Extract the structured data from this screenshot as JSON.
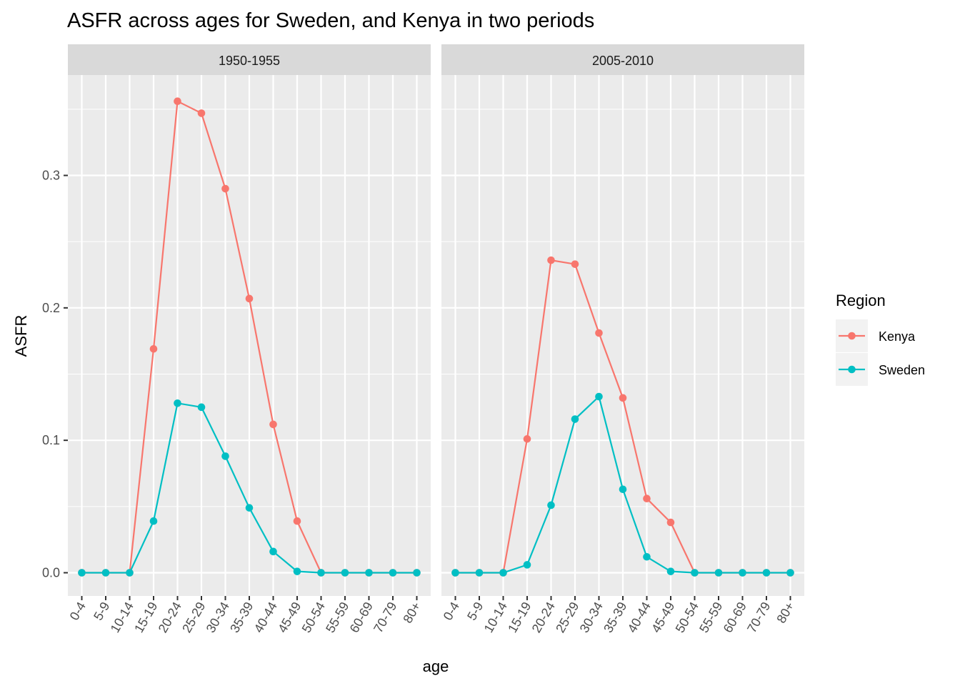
{
  "chart_data": {
    "type": "line",
    "title": "ASFR across ages for Sweden, and Kenya in two periods",
    "xlabel": "age",
    "ylabel": "ASFR",
    "categories": [
      "0-4",
      "5-9",
      "10-14",
      "15-19",
      "20-24",
      "25-29",
      "30-34",
      "35-39",
      "40-44",
      "45-49",
      "50-54",
      "55-59",
      "60-69",
      "70-79",
      "80+"
    ],
    "ylim": [
      -0.018,
      0.37
    ],
    "yticks": [
      0.0,
      0.1,
      0.2,
      0.3
    ],
    "ytick_labels": [
      "0.0",
      "0.1",
      "0.2",
      "0.3"
    ],
    "grid": true,
    "legend": {
      "title": "Region",
      "placement": "right",
      "entries": [
        "Kenya",
        "Sweden"
      ]
    },
    "colors": {
      "Kenya": "#F8766D",
      "Sweden": "#00BFC4"
    },
    "panels": [
      {
        "label": "1950-1955",
        "series": [
          {
            "name": "Kenya",
            "values": [
              0,
              0,
              0,
              0.169,
              0.356,
              0.347,
              0.29,
              0.207,
              0.112,
              0.039,
              0,
              0,
              0,
              0,
              0
            ]
          },
          {
            "name": "Sweden",
            "values": [
              0,
              0,
              0,
              0.039,
              0.128,
              0.125,
              0.088,
              0.049,
              0.016,
              0.001,
              0,
              0,
              0,
              0,
              0
            ]
          }
        ]
      },
      {
        "label": "2005-2010",
        "series": [
          {
            "name": "Kenya",
            "values": [
              0,
              0,
              0,
              0.101,
              0.236,
              0.233,
              0.181,
              0.132,
              0.056,
              0.038,
              0,
              0,
              0,
              0,
              0
            ]
          },
          {
            "name": "Sweden",
            "values": [
              0,
              0,
              0,
              0.006,
              0.051,
              0.116,
              0.133,
              0.063,
              0.012,
              0.001,
              0,
              0,
              0,
              0,
              0
            ]
          }
        ]
      }
    ]
  }
}
